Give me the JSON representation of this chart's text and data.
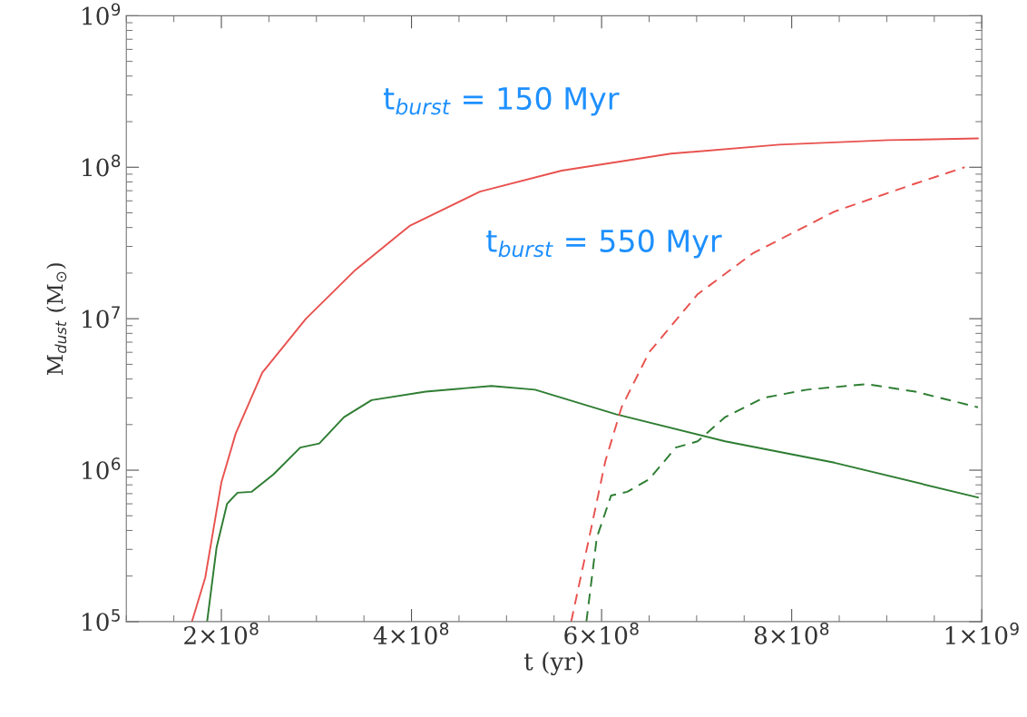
{
  "chart_data": {
    "type": "line",
    "xlabel": "t (yr)",
    "ylabel": "M$_{dust}$ (M$_{⊙}$)",
    "log": "y",
    "grid": false,
    "legend": false,
    "xlim": [
      100000000,
      1000000000
    ],
    "xticks": [
      {
        "value": 200000000,
        "label": "2×10$^{8}$"
      },
      {
        "value": 400000000,
        "label": "4×10$^{8}$"
      },
      {
        "value": 600000000,
        "label": "6×10$^{8}$"
      },
      {
        "value": 800000000,
        "label": "8×10$^{8}$"
      },
      {
        "value": 1000000000,
        "label": "1×10$^{9}$"
      }
    ],
    "ylim": [
      100000,
      1000000000
    ],
    "yticks": [
      {
        "value": 100000,
        "label": "10$^{5}$"
      },
      {
        "value": 1000000,
        "label": "10$^{6}$"
      },
      {
        "value": 10000000,
        "label": "10$^{7}$"
      },
      {
        "value": 100000000,
        "label": "10$^{8}$"
      },
      {
        "value": 1000000000,
        "label": "10$^{9}$"
      }
    ],
    "annotations": [
      "t$_{burst}$ = 150 Myr",
      "t$_{burst}$ = 550 Myr"
    ],
    "series": [
      {
        "color": "#e8524f",
        "line_style": "solid",
        "x": [
          169000000,
          183000000,
          200000000,
          215000000,
          243000000,
          289000000,
          341000000,
          398000000,
          472000000,
          558000000,
          673000000,
          787000000,
          902000000,
          996000000
        ],
        "values": [
          100000,
          195000,
          830000,
          1740000,
          4400000,
          10000000,
          21000000,
          41000000,
          69000000,
          95000000,
          123000000,
          141000000,
          151000000,
          155000000
        ]
      },
      {
        "color": "#2e7d32",
        "line_style": "solid",
        "x": [
          185000000,
          195000000,
          206000000,
          217000000,
          232000000,
          255000000,
          283000000,
          303000000,
          329000000,
          358000000,
          415000000,
          484000000,
          530000000,
          615000000,
          730000000,
          845000000,
          996000000
        ],
        "values": [
          100000,
          310000,
          600000,
          710000,
          720000,
          940000,
          1410000,
          1500000,
          2240000,
          2900000,
          3300000,
          3600000,
          3400000,
          2340000,
          1550000,
          1120000,
          660000
        ]
      },
      {
        "color": "#e8524f",
        "line_style": "dashed",
        "x": [
          568000000,
          587000000,
          604000000,
          621000000,
          650000000,
          701000000,
          759000000,
          845000000,
          930000000,
          982000000
        ],
        "values": [
          100000,
          360000,
          1150000,
          2600000,
          6000000,
          14500000,
          27000000,
          51000000,
          78000000,
          100000000
        ]
      },
      {
        "color": "#2e7d32",
        "line_style": "dashed",
        "x": [
          584000000,
          595000000,
          610000000,
          627000000,
          650000000,
          678000000,
          701000000,
          730000000,
          770000000,
          816000000,
          879000000,
          930000000,
          996000000
        ],
        "values": [
          100000,
          360000,
          680000,
          720000,
          870000,
          1410000,
          1550000,
          2240000,
          3000000,
          3400000,
          3700000,
          3300000,
          2600000
        ]
      }
    ]
  }
}
